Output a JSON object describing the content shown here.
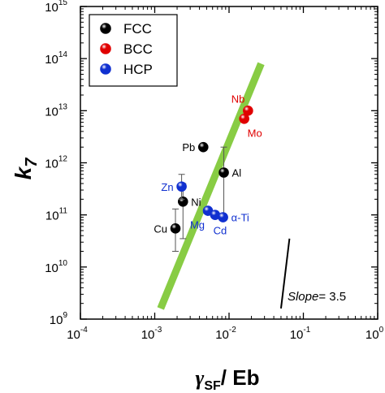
{
  "chart_data": {
    "type": "scatter",
    "x_scale": "log",
    "y_scale": "log",
    "xlim": [
      0.0001,
      1
    ],
    "ylim": [
      1000000000,
      1000000000000000
    ],
    "x_ticks": [
      {
        "base": "10",
        "exp": "-4",
        "value": 0.0001
      },
      {
        "base": "10",
        "exp": "-3",
        "value": 0.001
      },
      {
        "base": "10",
        "exp": "-2",
        "value": 0.01
      },
      {
        "base": "10",
        "exp": "-1",
        "value": 0.1
      },
      {
        "base": "10",
        "exp": "0",
        "value": 1
      }
    ],
    "y_ticks": [
      {
        "base": "10",
        "exp": "9",
        "value": 1000000000.0
      },
      {
        "base": "10",
        "exp": "10",
        "value": 10000000000.0
      },
      {
        "base": "10",
        "exp": "11",
        "value": 100000000000.0
      },
      {
        "base": "10",
        "exp": "12",
        "value": 1000000000000.0
      },
      {
        "base": "10",
        "exp": "13",
        "value": 10000000000000.0
      },
      {
        "base": "10",
        "exp": "14",
        "value": 100000000000000.0
      },
      {
        "base": "10",
        "exp": "15",
        "value": 1000000000000000.0
      }
    ],
    "ylabel": {
      "main": "k",
      "sub": "7"
    },
    "xlabel": {
      "main": "γ",
      "sub": "SF",
      "rest": "/ Eb"
    },
    "legend": {
      "position": "top-left",
      "entries": [
        {
          "name": "FCC",
          "color": "#000000"
        },
        {
          "name": "BCC",
          "color": "#e00000"
        },
        {
          "name": "HCP",
          "color": "#1030d0"
        }
      ]
    },
    "series": [
      {
        "name": "FCC",
        "color": "#000000",
        "points": [
          {
            "label": "Pb",
            "x": 0.0045,
            "y": 2000000000000.0,
            "label_side": "left"
          },
          {
            "label": "Al",
            "x": 0.0085,
            "y": 650000000000.0,
            "label_side": "right",
            "err": [
              100000000000.0,
              2000000000000.0
            ]
          },
          {
            "label": "Ni",
            "x": 0.0024,
            "y": 180000000000.0,
            "label_side": "right",
            "err": [
              35000000000.0,
              400000000000.0
            ]
          },
          {
            "label": "Cu",
            "x": 0.0019,
            "y": 55000000000.0,
            "label_side": "left",
            "err": [
              20000000000.0,
              130000000000.0
            ]
          }
        ]
      },
      {
        "name": "BCC",
        "color": "#e00000",
        "points": [
          {
            "label": "Nb",
            "x": 0.018,
            "y": 10000000000000.0,
            "label_side": "above-left"
          },
          {
            "label": "Mo",
            "x": 0.016,
            "y": 7000000000000.0,
            "label_side": "below-right"
          }
        ]
      },
      {
        "name": "HCP",
        "color": "#1030d0",
        "points": [
          {
            "label": "Zn",
            "x": 0.0023,
            "y": 350000000000.0,
            "label_side": "left",
            "err": [
              200000000000.0,
              600000000000.0
            ]
          },
          {
            "label": "Mg",
            "x": 0.0052,
            "y": 120000000000.0,
            "label_side": "below-left"
          },
          {
            "label": "Cd",
            "x": 0.0065,
            "y": 100000000000.0,
            "label_side": "below"
          },
          {
            "label": "α-Ti",
            "x": 0.0083,
            "y": 90000000000.0,
            "label_side": "right"
          }
        ]
      }
    ],
    "fit_line": {
      "color": "#88cc44",
      "x": [
        0.0012,
        0.027
      ],
      "y": [
        1600000000.0,
        80000000000000.0
      ]
    },
    "slope_annotation": {
      "label": "Slope",
      "text": "= 3.5",
      "x": [
        0.05,
        0.065
      ],
      "y": [
        1600000000.0,
        35000000000.0
      ]
    }
  }
}
